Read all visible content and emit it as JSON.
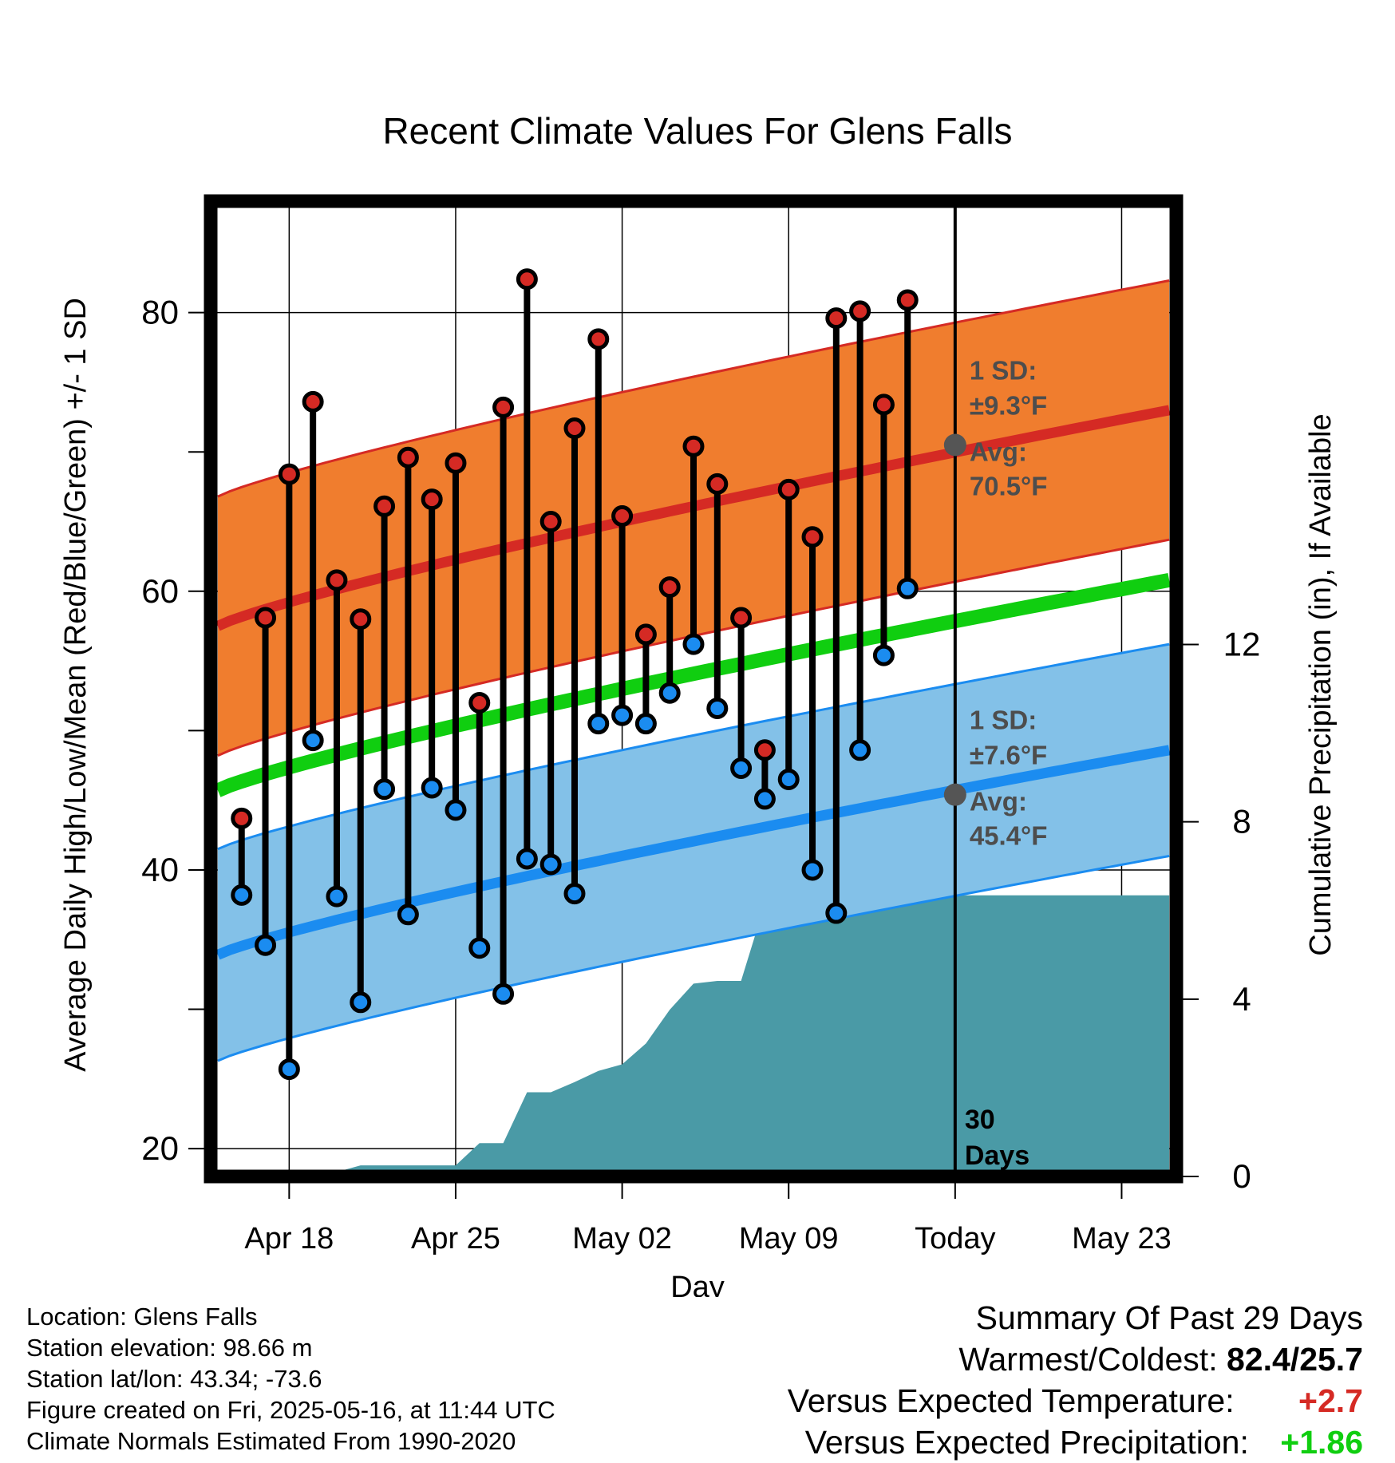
{
  "chart_data": {
    "type": "line",
    "title": "Recent Climate Values For Glens Falls",
    "xlabel": "Day",
    "ylabel": "Average Daily High/Low/Mean (Red/Blue/Green) +/- 1 SD",
    "y2label": "Cumulative Precipitation (in), If Available",
    "ylim": [
      18,
      88
    ],
    "y2lim": [
      0,
      22
    ],
    "yticks": [
      20,
      40,
      60,
      80
    ],
    "y2ticks": [
      0,
      4,
      8,
      12
    ],
    "xtick_labels": [
      "Apr 18",
      "Apr 25",
      "May 02",
      "May 09",
      "Today",
      "May 23"
    ],
    "xtick_days": [
      4,
      11,
      18,
      25,
      32,
      39
    ],
    "xlim": [
      0.7,
      41.3
    ],
    "today_index": 32,
    "today_label_line1": "30",
    "today_label_line2": "Days",
    "grid": true,
    "days_shown": [
      "Apr 15",
      "Apr 16",
      "Apr 17",
      "Apr 18",
      "Apr 19",
      "Apr 20",
      "Apr 21",
      "Apr 22",
      "Apr 23",
      "Apr 24",
      "Apr 25",
      "Apr 26",
      "Apr 27",
      "Apr 28",
      "Apr 29",
      "Apr 30",
      "May 01",
      "May 02",
      "May 03",
      "May 04",
      "May 05",
      "May 06",
      "May 07",
      "May 08",
      "May 09",
      "May 10",
      "May 11",
      "May 12",
      "May 13",
      "May 14",
      "May 15"
    ],
    "daily_high": [
      43.7,
      58.1,
      68.4,
      73.6,
      60.8,
      58.0,
      66.1,
      69.6,
      66.6,
      69.2,
      52.0,
      73.2,
      82.4,
      65.0,
      71.7,
      78.1,
      65.4,
      56.9,
      60.3,
      70.4,
      67.7,
      58.1,
      48.6,
      67.3,
      63.9,
      79.6,
      80.1,
      73.4,
      80.9
    ],
    "daily_low": [
      38.2,
      34.6,
      25.7,
      49.3,
      38.1,
      30.5,
      45.8,
      36.8,
      45.9,
      44.3,
      34.4,
      31.1,
      40.8,
      40.4,
      38.3,
      50.5,
      51.1,
      50.5,
      52.7,
      56.2,
      51.6,
      47.3,
      45.1,
      46.5,
      40.0,
      36.9,
      48.6,
      55.4,
      60.2
    ],
    "normal_days": [
      1,
      41
    ],
    "normal_high_avg": [
      57.5,
      73.0
    ],
    "normal_high_sd": 9.3,
    "normal_low_avg": [
      33.9,
      48.6
    ],
    "normal_low_sd": 7.6,
    "normal_mean_avg": [
      45.7,
      60.8
    ],
    "precip_days": [
      1,
      2,
      3,
      4,
      5,
      6,
      7,
      8,
      9,
      10,
      11,
      12,
      13,
      14,
      15,
      16,
      17,
      18,
      19,
      20,
      21,
      22,
      23,
      24,
      25,
      26,
      27,
      28,
      29,
      30,
      31,
      32,
      41
    ],
    "cumulative_precip": [
      0.0,
      0.0,
      0.0,
      0.0,
      0.04,
      0.1,
      0.25,
      0.25,
      0.25,
      0.25,
      0.25,
      0.75,
      0.75,
      1.9,
      1.9,
      2.13,
      2.38,
      2.53,
      3.0,
      3.76,
      4.35,
      4.41,
      4.41,
      6.15,
      6.34,
      6.34,
      6.34,
      6.34,
      6.34,
      6.34,
      6.34,
      6.34,
      6.34
    ],
    "high_annotation": {
      "sd_label": "1 SD:",
      "sd_value": "±9.3°F",
      "avg_label": "Avg:",
      "avg_value": "70.5°F",
      "avg_number": 70.5
    },
    "low_annotation": {
      "sd_label": "1 SD:",
      "sd_value": "±7.6°F",
      "avg_label": "Avg:",
      "avg_value": "45.4°F",
      "avg_number": 45.4
    },
    "colors": {
      "high_band": "#F07D2E",
      "high_line": "#D52A24",
      "low_band": "#83C1E8",
      "low_line": "#1B8CF0",
      "mean_line": "#10CE10",
      "precip_fill": "#4A9AA6",
      "high_dot": "#D52A24",
      "low_dot": "#1B8CF0",
      "annotation_text": "#4D4D4D"
    }
  },
  "footer": {
    "location": "Location: Glens Falls",
    "elevation": "Station elevation: 98.66 m",
    "latlon": "Station lat/lon: 43.34; -73.6",
    "created": "Figure created on Fri, 2025-05-16, at 11:44 UTC",
    "normals": "Climate Normals Estimated From 1990-2020"
  },
  "summary": {
    "title": "Summary Of Past 29 Days",
    "warm_cold_label": "Warmest/Coldest:",
    "warm_cold_value": "82.4/25.7",
    "temp_label": "Versus Expected Temperature:",
    "temp_value": "+2.7",
    "temp_color": "#D52A24",
    "precip_label": "Versus Expected Precipitation:",
    "precip_value": "+1.86",
    "precip_color": "#10CE10"
  }
}
